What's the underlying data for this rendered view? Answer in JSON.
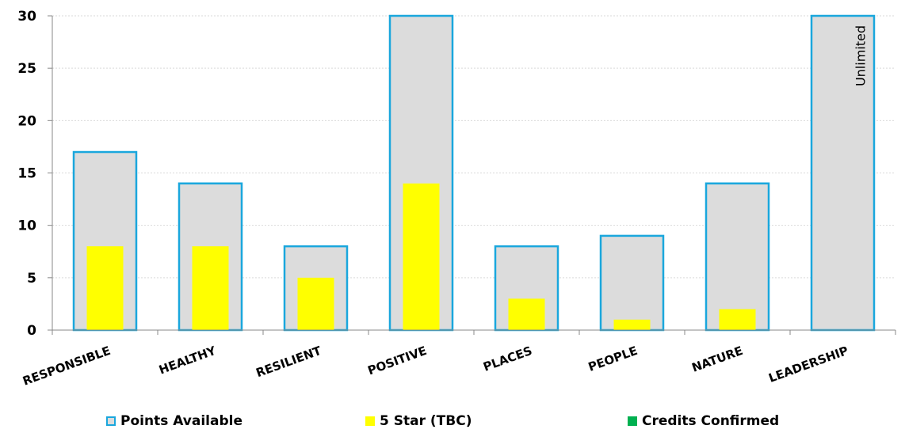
{
  "chart_data": {
    "type": "bar",
    "categories": [
      "RESPONSIBLE",
      "HEALTHY",
      "RESILIENT",
      "POSITIVE",
      "PLACES",
      "PEOPLE",
      "NATURE",
      "LEADERSHIP"
    ],
    "series": [
      {
        "name": "Points Available",
        "values": [
          17,
          14,
          8,
          30,
          8,
          9,
          14,
          30
        ],
        "fill": "#dcdcdc",
        "stroke": "#1aa7dd"
      },
      {
        "name": "5 Star (TBC)",
        "values": [
          8,
          8,
          5,
          14,
          3,
          1,
          2,
          0
        ],
        "fill": "#ffff00"
      },
      {
        "name": "Credits Confirmed",
        "values": [
          0,
          0,
          0,
          0,
          0,
          0,
          0,
          0
        ],
        "fill": "#00b050"
      }
    ],
    "ylim": [
      0,
      30
    ],
    "yticks": [
      0,
      5,
      10,
      15,
      20,
      25,
      30
    ],
    "grid": true,
    "legend_position": "bottom",
    "annotations": [
      {
        "category": "LEADERSHIP",
        "text": "Unlimited"
      }
    ],
    "title": "",
    "xlabel": "",
    "ylabel": ""
  }
}
